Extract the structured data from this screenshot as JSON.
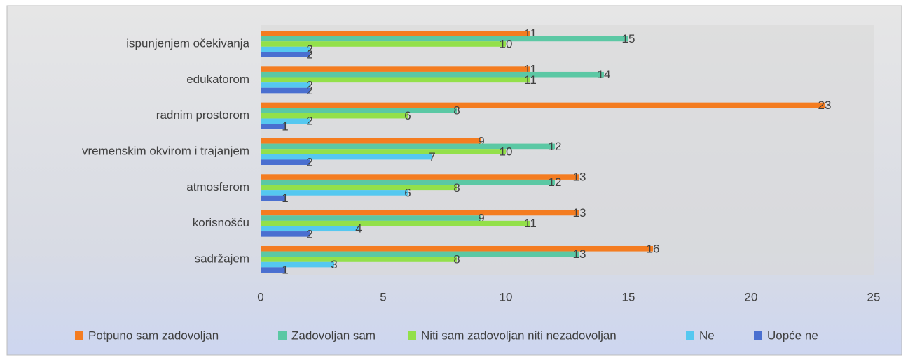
{
  "chart_data": {
    "type": "bar",
    "orientation": "horizontal",
    "categories": [
      "ispunjenjem očekivanja",
      "edukatorom",
      "radnim prostorom",
      "vremenskim okvirom i trajanjem",
      "atmosferom",
      "korisnošću",
      "sadržajem"
    ],
    "series": [
      {
        "name": "Potpuno sam zadovoljan",
        "color": "#f47c20",
        "values": [
          11,
          11,
          23,
          9,
          13,
          13,
          16
        ]
      },
      {
        "name": "Zadovoljan sam",
        "color": "#5bc8a4",
        "values": [
          15,
          14,
          8,
          12,
          12,
          9,
          13
        ]
      },
      {
        "name": "Niti sam zadovoljan niti nezadovoljan",
        "color": "#93e04a",
        "values": [
          10,
          11,
          6,
          10,
          8,
          11,
          8
        ]
      },
      {
        "name": "Ne",
        "color": "#55c8f0",
        "values": [
          2,
          2,
          2,
          7,
          6,
          4,
          3
        ]
      },
      {
        "name": "Uopće ne",
        "color": "#4a6fd0",
        "values": [
          2,
          2,
          1,
          2,
          1,
          2,
          1
        ]
      }
    ],
    "xlim": [
      0,
      25
    ],
    "xticks": [
      0,
      5,
      10,
      15,
      20,
      25
    ],
    "grid": false,
    "legend": "bottom"
  }
}
